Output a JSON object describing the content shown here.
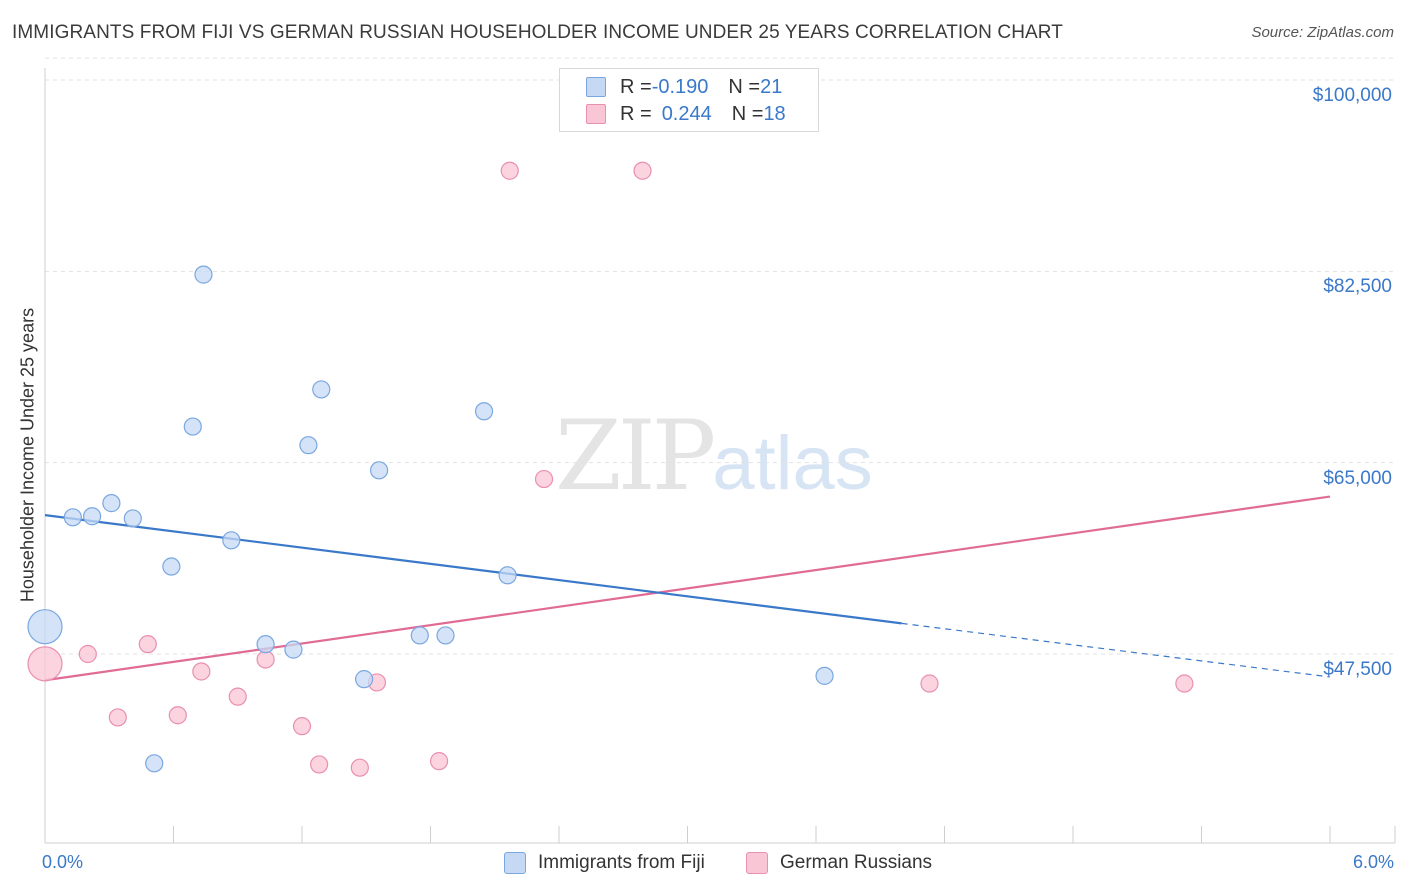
{
  "title": "IMMIGRANTS FROM FIJI VS GERMAN RUSSIAN HOUSEHOLDER INCOME UNDER 25 YEARS CORRELATION CHART",
  "source": "Source: ZipAtlas.com",
  "watermark": {
    "zip": "ZIP",
    "atlas": "atlas"
  },
  "legend": {
    "fiji": {
      "r_label": "R = ",
      "r_value": "-0.190",
      "n_label": "N = ",
      "n_value": "21"
    },
    "german": {
      "r_label": "R = ",
      "r_value": "0.244",
      "n_label": "N = ",
      "n_value": "18"
    }
  },
  "colors": {
    "fiji": "#3a78c9",
    "fiji_fill": "#c5d9f4",
    "german": "#e06c96",
    "german_fill": "#f9c6d6",
    "accent": "#3a78c9"
  },
  "chart_data": {
    "type": "scatter",
    "title": "IMMIGRANTS FROM FIJI VS GERMAN RUSSIAN HOUSEHOLDER INCOME UNDER 25 YEARS CORRELATION CHART",
    "xlabel": "",
    "ylabel": "Householder Income Under 25 years",
    "xlim": [
      0,
      6
    ],
    "ylim": [
      34000,
      102000
    ],
    "x_tick_labels": [
      "0.0%",
      "6.0%"
    ],
    "y_ticks": [
      47500,
      65000,
      82500,
      100000
    ],
    "y_tick_labels": [
      "$47,500",
      "$65,000",
      "$82,500",
      "$100,000"
    ],
    "grid": true,
    "legend_position": "bottom",
    "series": [
      {
        "name": "Immigrants from Fiji",
        "color": "#3a78c9",
        "points": [
          {
            "x": 0.13,
            "y": 60000
          },
          {
            "x": 0.22,
            "y": 60100
          },
          {
            "x": 0.31,
            "y": 61300
          },
          {
            "x": 0.41,
            "y": 59900
          },
          {
            "x": 0.74,
            "y": 82200
          },
          {
            "x": 0.69,
            "y": 68300
          },
          {
            "x": 0.87,
            "y": 57900
          },
          {
            "x": 0.59,
            "y": 55500
          },
          {
            "x": 1.29,
            "y": 71700
          },
          {
            "x": 1.23,
            "y": 66600
          },
          {
            "x": 1.56,
            "y": 64300
          },
          {
            "x": 2.05,
            "y": 69700
          },
          {
            "x": 2.16,
            "y": 54700
          },
          {
            "x": 1.03,
            "y": 48400
          },
          {
            "x": 1.16,
            "y": 47900
          },
          {
            "x": 1.75,
            "y": 49200
          },
          {
            "x": 1.87,
            "y": 49200
          },
          {
            "x": 1.49,
            "y": 45200
          },
          {
            "x": 0.51,
            "y": 37500
          },
          {
            "x": 3.64,
            "y": 45500
          },
          {
            "x": 0.0,
            "y": 50000,
            "size": "large"
          }
        ],
        "trend": {
          "x0": 0.0,
          "y0": 60200,
          "x1": 4.0,
          "y1": 50300,
          "dashed_to_x": 6.0,
          "dashed_to_y": 45400
        }
      },
      {
        "name": "German Russians",
        "color": "#e06c96",
        "points": [
          {
            "x": 0.0,
            "y": 46600,
            "size": "large"
          },
          {
            "x": 0.2,
            "y": 47500
          },
          {
            "x": 0.48,
            "y": 48400
          },
          {
            "x": 0.34,
            "y": 41700
          },
          {
            "x": 0.62,
            "y": 41900
          },
          {
            "x": 0.73,
            "y": 45900
          },
          {
            "x": 0.9,
            "y": 43600
          },
          {
            "x": 1.03,
            "y": 47000
          },
          {
            "x": 1.2,
            "y": 40900
          },
          {
            "x": 1.28,
            "y": 37400
          },
          {
            "x": 1.47,
            "y": 37100
          },
          {
            "x": 1.55,
            "y": 44900
          },
          {
            "x": 1.84,
            "y": 37700
          },
          {
            "x": 2.17,
            "y": 91700
          },
          {
            "x": 2.79,
            "y": 91700
          },
          {
            "x": 2.33,
            "y": 63500
          },
          {
            "x": 4.13,
            "y": 44800
          },
          {
            "x": 5.32,
            "y": 44800
          }
        ],
        "trend": {
          "x0": 0.0,
          "y0": 45100,
          "x1": 6.0,
          "y1": 61900
        }
      }
    ]
  }
}
